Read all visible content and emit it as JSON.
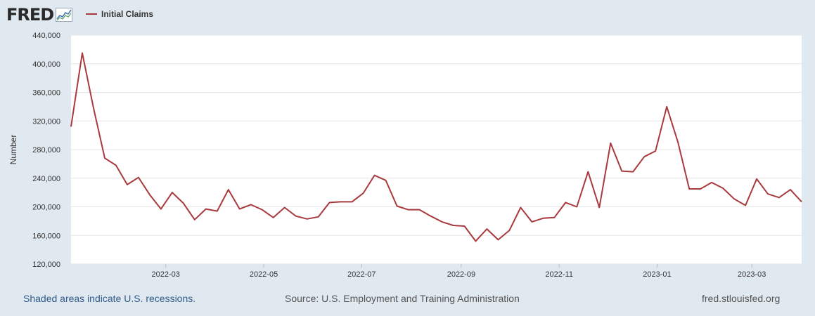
{
  "header": {
    "logo_text": "FRED",
    "legend_label": "Initial Claims"
  },
  "colors": {
    "page_background": "#e1e9f0",
    "plot_background": "#ffffff",
    "series_line": "#a83a3e",
    "gridline": "#e6e6e6",
    "recession_note": "#2f5a8c"
  },
  "footer": {
    "recession_note": "Shaded areas indicate U.S. recessions.",
    "source": "Source: U.S. Employment and Training Administration",
    "url": "fred.stlouisfed.org"
  },
  "chart_data": {
    "type": "line",
    "ylabel": "Number",
    "ylim": [
      120000,
      440000
    ],
    "yticks": [
      120000,
      160000,
      200000,
      240000,
      280000,
      320000,
      360000,
      400000,
      440000
    ],
    "ytick_labels": [
      "120,000",
      "160,000",
      "200,000",
      "240,000",
      "280,000",
      "320,000",
      "360,000",
      "400,000",
      "440,000"
    ],
    "xticks": [
      "2022-03-01",
      "2022-05-01",
      "2022-07-01",
      "2022-09-01",
      "2022-11-01",
      "2023-01-01",
      "2023-03-01"
    ],
    "xtick_labels": [
      "2022-03",
      "2022-05",
      "2022-07",
      "2022-09",
      "2022-11",
      "2023-01",
      "2023-03"
    ],
    "xlim": [
      "2022-01-01",
      "2023-04-01"
    ],
    "grid": true,
    "legend": "top-left",
    "series": [
      {
        "name": "Initial Claims",
        "x": [
          "2022-01-01",
          "2022-01-08",
          "2022-01-15",
          "2022-01-22",
          "2022-01-29",
          "2022-02-05",
          "2022-02-12",
          "2022-02-19",
          "2022-02-26",
          "2022-03-05",
          "2022-03-12",
          "2022-03-19",
          "2022-03-26",
          "2022-04-02",
          "2022-04-09",
          "2022-04-16",
          "2022-04-23",
          "2022-04-30",
          "2022-05-07",
          "2022-05-14",
          "2022-05-21",
          "2022-05-28",
          "2022-06-04",
          "2022-06-11",
          "2022-06-18",
          "2022-06-25",
          "2022-07-02",
          "2022-07-09",
          "2022-07-16",
          "2022-07-23",
          "2022-07-30",
          "2022-08-06",
          "2022-08-13",
          "2022-08-20",
          "2022-08-27",
          "2022-09-03",
          "2022-09-10",
          "2022-09-17",
          "2022-09-24",
          "2022-10-01",
          "2022-10-08",
          "2022-10-15",
          "2022-10-22",
          "2022-10-29",
          "2022-11-05",
          "2022-11-12",
          "2022-11-19",
          "2022-11-26",
          "2022-12-03",
          "2022-12-10",
          "2022-12-17",
          "2022-12-24",
          "2022-12-31",
          "2023-01-07",
          "2023-01-14",
          "2023-01-21",
          "2023-01-28",
          "2023-02-04",
          "2023-02-11",
          "2023-02-18",
          "2023-02-25",
          "2023-03-04",
          "2023-03-11",
          "2023-03-18",
          "2023-03-25",
          "2023-04-01"
        ],
        "values": [
          312000,
          415000,
          338000,
          268000,
          258000,
          231000,
          241000,
          217000,
          197000,
          220000,
          205000,
          182000,
          197000,
          194000,
          224000,
          197000,
          203000,
          196000,
          185000,
          199000,
          187000,
          183000,
          186000,
          206000,
          207000,
          207000,
          219000,
          244000,
          237000,
          201000,
          196000,
          196000,
          187000,
          179000,
          174000,
          173000,
          152000,
          169000,
          154000,
          167000,
          199000,
          179000,
          184000,
          185000,
          206000,
          200000,
          249000,
          199000,
          289000,
          250000,
          249000,
          270000,
          278000,
          340000,
          290000,
          225000,
          225000,
          234000,
          226000,
          211000,
          202000,
          239000,
          218000,
          213000,
          224000,
          207000
        ]
      }
    ]
  }
}
